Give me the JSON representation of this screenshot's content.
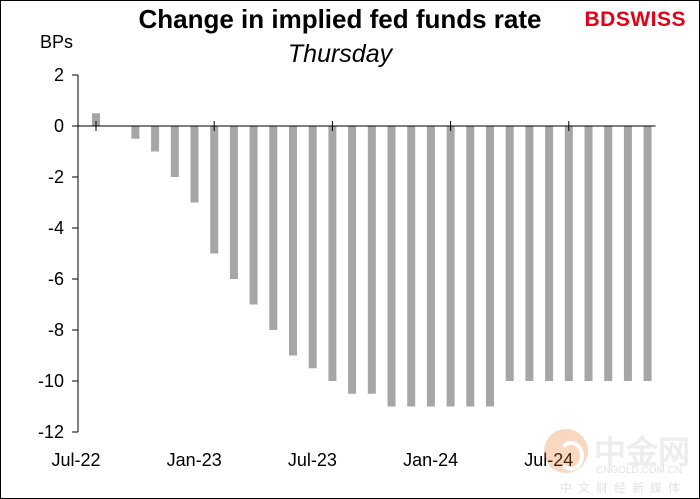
{
  "chart_data": {
    "type": "bar",
    "title": "Change in implied fed funds rate",
    "subtitle": "Thursday",
    "ylabel": "BPs",
    "xlabel": "",
    "ylim": [
      -12,
      2
    ],
    "yticks": [
      2,
      0,
      -2,
      -4,
      -6,
      -8,
      -10,
      -12
    ],
    "x_tick_labels": [
      "Jul-22",
      "Jan-23",
      "Jul-23",
      "Jan-24",
      "Jul-24"
    ],
    "x_tick_indices": [
      0,
      6,
      12,
      18,
      24
    ],
    "series": [
      {
        "name": "Change in implied fed funds rate",
        "color": "#a6a6a6",
        "values": [
          0.5,
          0,
          -0.5,
          -1,
          -2,
          -3,
          -5,
          -6,
          -7,
          -8,
          -9,
          -9.5,
          -10,
          -10.5,
          -10.5,
          -11,
          -11,
          -11,
          -11,
          -11,
          -11,
          -10,
          -10,
          -10,
          -10,
          -10,
          -10,
          -10,
          -10
        ]
      }
    ]
  },
  "brand": {
    "name": "BDSWISS",
    "color": "#e2001a"
  },
  "watermark": {
    "title": "中金网",
    "domain": "CNGOLD.COM.CN",
    "subtitle": "中文财经新媒体"
  }
}
